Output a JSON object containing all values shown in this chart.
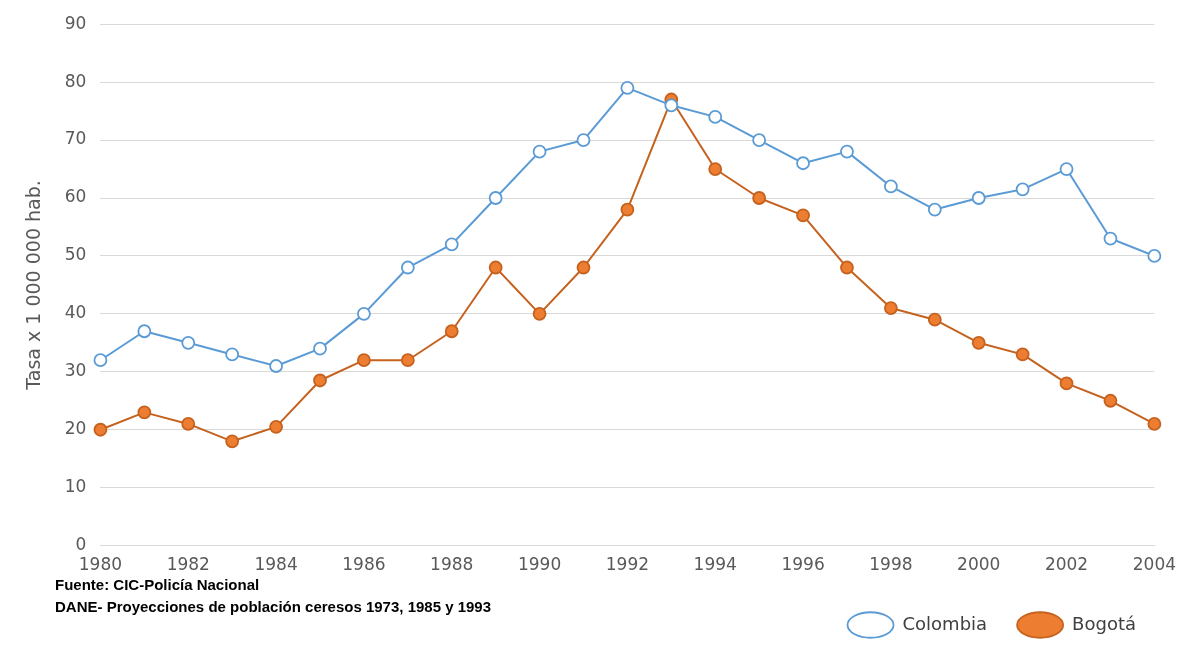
{
  "chart_data": {
    "type": "line",
    "ylabel": "Tasa x 1 000 000 hab.",
    "categories": [
      "1980",
      null,
      "1982",
      null,
      "1984",
      null,
      "1986",
      null,
      "1988",
      null,
      "1990",
      null,
      "1992",
      null,
      "1994",
      null,
      "1996",
      null,
      "1998",
      null,
      "2000",
      null,
      "2002",
      null,
      "2004"
    ],
    "series": [
      {
        "name": "Bogotá",
        "color": "#c5621f",
        "values": [
          20,
          23,
          21,
          18,
          20.5,
          28.5,
          32,
          32,
          37,
          48,
          40,
          48,
          58,
          77,
          65,
          60,
          57,
          48,
          41,
          39,
          35,
          33,
          28,
          25,
          21
        ]
      },
      {
        "name": "Colombia",
        "color": "#5b9bd5",
        "values": [
          32,
          37,
          35,
          33,
          31,
          34,
          40,
          48,
          52,
          60,
          68,
          70,
          79,
          76,
          74,
          70,
          66,
          68,
          62,
          58,
          60,
          61.5,
          65,
          53,
          50
        ]
      }
    ],
    "ylim": [
      0,
      90
    ],
    "yticks": [
      0,
      10,
      20,
      30,
      40,
      50,
      60,
      70,
      80,
      90
    ],
    "grid": "y",
    "legend": "bottom right",
    "marker": "circle",
    "line_style": "solid",
    "annotations": [
      "Fuente: CIC-Policía Nacional",
      "DANE- Proyecciones de población ceresos 1973, 1985 y 1993"
    ]
  }
}
